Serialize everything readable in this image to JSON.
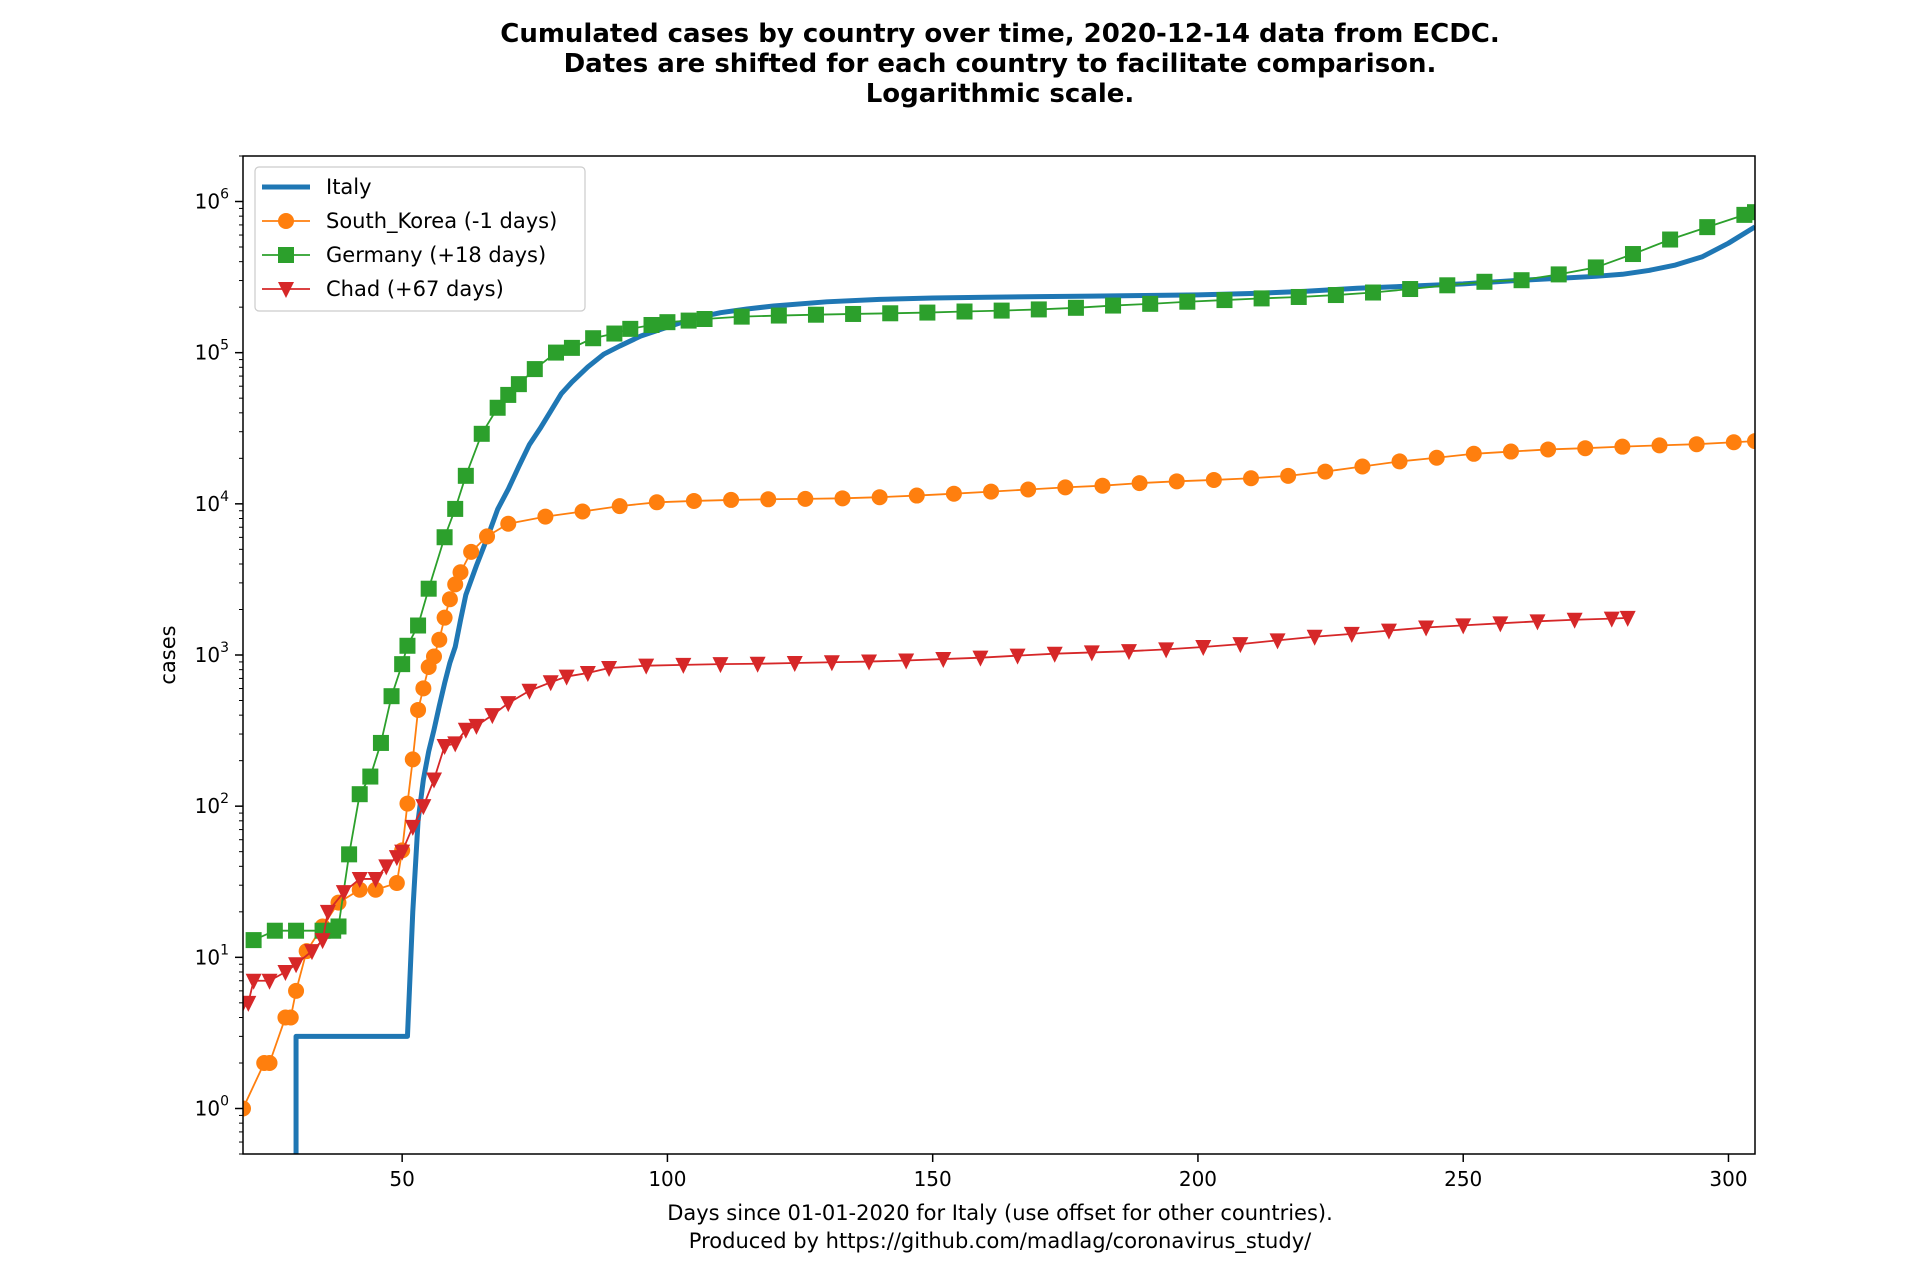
{
  "chart_data": {
    "type": "line",
    "title_lines": [
      "Cumulated cases by country over time, 2020-12-14 data from ECDC.",
      "Dates are shifted for each country to facilitate comparison.",
      "Logarithmic scale."
    ],
    "xlabel_lines": [
      "Days since 01-01-2020 for Italy (use offset for other countries).",
      "Produced by https://github.com/madlag/coronavirus_study/"
    ],
    "ylabel": "cases",
    "xlim": [
      20,
      305
    ],
    "ylim": [
      0.5,
      2000000
    ],
    "yscale": "log",
    "x_ticks": [
      50,
      100,
      150,
      200,
      250,
      300
    ],
    "x_tick_labels": [
      "50",
      "100",
      "150",
      "200",
      "250",
      "300"
    ],
    "y_ticks": [
      1,
      10,
      100,
      1000,
      10000,
      100000,
      1000000
    ],
    "y_tick_labels": [
      {
        "base": "10",
        "exp": "0"
      },
      {
        "base": "10",
        "exp": "1"
      },
      {
        "base": "10",
        "exp": "2"
      },
      {
        "base": "10",
        "exp": "3"
      },
      {
        "base": "10",
        "exp": "4"
      },
      {
        "base": "10",
        "exp": "5"
      },
      {
        "base": "10",
        "exp": "6"
      }
    ],
    "legend_position": "upper-left",
    "series": [
      {
        "name": "Italy",
        "color": "#1f77b4",
        "marker": "none",
        "line_width": 5,
        "x": [
          29,
          29,
          30,
          30,
          51,
          51,
          52,
          53,
          54,
          55,
          56,
          57,
          58,
          59,
          60,
          61,
          62,
          64,
          66,
          68,
          70,
          72,
          74,
          76,
          78,
          80,
          82,
          85,
          88,
          91,
          95,
          100,
          105,
          110,
          115,
          120,
          130,
          140,
          150,
          160,
          170,
          180,
          190,
          200,
          210,
          220,
          230,
          240,
          250,
          260,
          270,
          275,
          280,
          285,
          290,
          295,
          300,
          305
        ],
        "y": [
          0.3,
          0.3,
          0.5,
          3,
          3,
          3,
          20,
          80,
          150,
          230,
          320,
          460,
          650,
          890,
          1130,
          1700,
          2500,
          3900,
          5900,
          9200,
          12500,
          17700,
          24700,
          31500,
          41000,
          53500,
          63900,
          80500,
          97700,
          110600,
          128900,
          147600,
          168900,
          183900,
          194400,
          203600,
          217000,
          225400,
          229900,
          232600,
          234800,
          236700,
          238800,
          241100,
          246100,
          254500,
          266800,
          275700,
          285000,
          300000,
          313000,
          320000,
          330000,
          350000,
          380000,
          430000,
          530000,
          680000
        ]
      },
      {
        "name": "South_Korea (-1 days)",
        "color": "#ff7f0e",
        "marker": "circle",
        "line_width": 1.8,
        "x": [
          20,
          24,
          25,
          28,
          29,
          30,
          32,
          35,
          38,
          42,
          45,
          49,
          50,
          51,
          52,
          53,
          54,
          55,
          56,
          57,
          58,
          59,
          60,
          61,
          63,
          66,
          70,
          77,
          84,
          91,
          98,
          105,
          112,
          119,
          126,
          133,
          140,
          147,
          154,
          161,
          168,
          175,
          182,
          189,
          196,
          203,
          210,
          217,
          224,
          231,
          238,
          245,
          252,
          259,
          266,
          273,
          280,
          287,
          294,
          301,
          305
        ],
        "y": [
          1,
          2,
          2,
          4,
          4,
          6,
          11,
          16,
          23,
          28,
          28,
          31,
          51,
          104,
          204,
          433,
          602,
          833,
          977,
          1261,
          1766,
          2337,
          2931,
          3526,
          4812,
          6088,
          7382,
          8236,
          8897,
          9661,
          10237,
          10450,
          10613,
          10718,
          10780,
          10874,
          11065,
          11344,
          11668,
          12051,
          12438,
          12850,
          13181,
          13711,
          14092,
          14389,
          14770,
          15318,
          16346,
          17665,
          19077,
          20182,
          21432,
          22176,
          22893,
          23341,
          23889,
          24353,
          24805,
          25543,
          26000
        ]
      },
      {
        "name": "Germany (+18 days)",
        "color": "#2ca02c",
        "marker": "square",
        "line_width": 1.8,
        "x": [
          22,
          26,
          30,
          35,
          37,
          38,
          40,
          42,
          44,
          46,
          48,
          50,
          51,
          53,
          55,
          58,
          60,
          62,
          65,
          68,
          70,
          72,
          75,
          79,
          82,
          86,
          90,
          93,
          97,
          100,
          104,
          107,
          114,
          121,
          128,
          135,
          142,
          149,
          156,
          163,
          170,
          177,
          184,
          191,
          198,
          205,
          212,
          219,
          226,
          233,
          240,
          247,
          254,
          261,
          268,
          275,
          282,
          289,
          296,
          303,
          305
        ],
        "y": [
          13,
          15,
          15,
          15,
          15,
          16,
          48,
          120,
          157,
          262,
          534,
          870,
          1151,
          1567,
          2745,
          6012,
          9257,
          15320,
          29056,
          43211,
          52547,
          61913,
          77872,
          100123,
          107591,
          124623,
          133830,
          143724,
          152438,
          159119,
          163009,
          167007,
          173152,
          176007,
          178281,
          180328,
          182196,
          184193,
          187184,
          189817,
          193243,
          198064,
          204964,
          210402,
          217293,
          222828,
          228565,
          233575,
          240571,
          249985,
          263663,
          279025,
          294395,
          301567,
          329453,
          366299,
          449275,
          560379,
          676859,
          815746,
          850000
        ]
      },
      {
        "name": "Chad (+67 days)",
        "color": "#d62728",
        "marker": "triangle-down",
        "line_width": 1.8,
        "x": [
          20,
          21,
          22,
          25,
          28,
          30,
          33,
          35,
          36,
          39,
          42,
          45,
          47,
          49,
          50,
          52,
          54,
          56,
          58,
          60,
          62,
          64,
          67,
          70,
          74,
          78,
          81,
          85,
          89,
          96,
          103,
          110,
          117,
          124,
          131,
          138,
          145,
          152,
          159,
          166,
          173,
          180,
          187,
          194,
          201,
          208,
          215,
          222,
          229,
          236,
          243,
          250,
          257,
          264,
          271,
          278,
          281
        ],
        "y": [
          5,
          5,
          7,
          7,
          8,
          9,
          11,
          13,
          20,
          27,
          33,
          33,
          40,
          46,
          50,
          73,
          100,
          150,
          250,
          260,
          320,
          340,
          400,
          480,
          580,
          660,
          720,
          760,
          820,
          850,
          860,
          870,
          875,
          885,
          895,
          905,
          920,
          940,
          960,
          990,
          1020,
          1040,
          1060,
          1090,
          1130,
          1180,
          1250,
          1320,
          1380,
          1450,
          1520,
          1570,
          1620,
          1670,
          1710,
          1740,
          1760
        ]
      }
    ]
  }
}
